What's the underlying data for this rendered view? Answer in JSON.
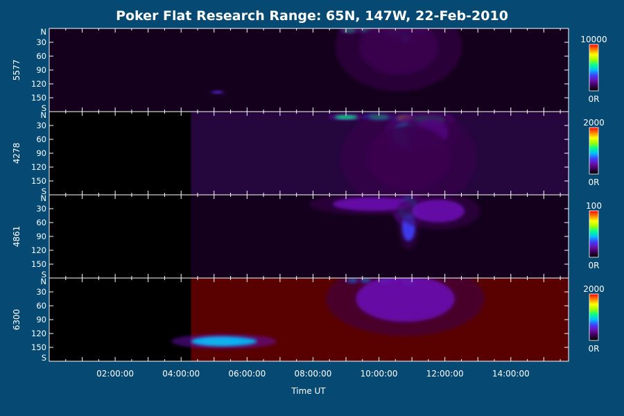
{
  "chart_data": {
    "type": "heatmap",
    "title": "Poker Flat Research Range: 65N, 147W, 22-Feb-2010",
    "xlabel": "Time UT",
    "x_range_hours": [
      0.0,
      15.75
    ],
    "x_ticks": [
      {
        "value": 2,
        "label": "02:00:00"
      },
      {
        "value": 4,
        "label": "04:00:00"
      },
      {
        "value": 6,
        "label": "06:00:00"
      },
      {
        "value": 8,
        "label": "08:00:00"
      },
      {
        "value": 10,
        "label": "10:00:00"
      },
      {
        "value": 12,
        "label": "12:00:00"
      },
      {
        "value": 14,
        "label": "14:00:00"
      }
    ],
    "y_range": [
      0,
      180
    ],
    "y_ticks": [
      {
        "value": 0,
        "label": "N"
      },
      {
        "value": 30,
        "label": "30"
      },
      {
        "value": 60,
        "label": "60"
      },
      {
        "value": 90,
        "label": "90"
      },
      {
        "value": 120,
        "label": "120"
      },
      {
        "value": 150,
        "label": "150"
      },
      {
        "value": 180,
        "label": "S"
      }
    ],
    "colormap": [
      "#000000",
      "#3a0050",
      "#6a10b0",
      "#4040ff",
      "#00c0ff",
      "#00ff90",
      "#a0ff00",
      "#ffff00",
      "#ff8000",
      "#ff0000"
    ],
    "panels": [
      {
        "name": "5577",
        "color_max_label": "10000",
        "color_min_label": "0R",
        "data_start_hours": 0.0,
        "background_level": 0.02,
        "features": [
          {
            "t": 9.1,
            "y": 5,
            "dt": 0.2,
            "dy": 4,
            "level": 0.55
          },
          {
            "t": 9.7,
            "y": 5,
            "dt": 0.25,
            "dy": 4,
            "level": 0.5
          },
          {
            "t": 10.5,
            "y": 8,
            "dt": 0.3,
            "dy": 10,
            "level": 0.6
          },
          {
            "t": 10.8,
            "y": 20,
            "dt": 0.15,
            "dy": 12,
            "level": 0.45
          },
          {
            "t": 11.2,
            "y": 6,
            "dt": 0.2,
            "dy": 4,
            "level": 0.45
          },
          {
            "t": 10.6,
            "y": 40,
            "dt": 1.2,
            "dy": 60,
            "level": 0.15
          },
          {
            "t": 5.1,
            "y": 138,
            "dt": 0.15,
            "dy": 2,
            "level": 0.35
          }
        ]
      },
      {
        "name": "4278",
        "color_max_label": "2000",
        "color_min_label": "0R",
        "data_start_hours": 4.3,
        "background_level": 0.03,
        "features": [
          {
            "t": 9.0,
            "y": 12,
            "dt": 0.35,
            "dy": 4,
            "level": 0.55
          },
          {
            "t": 10.0,
            "y": 12,
            "dt": 0.3,
            "dy": 5,
            "level": 0.6
          },
          {
            "t": 10.8,
            "y": 15,
            "dt": 0.25,
            "dy": 6,
            "level": 0.75
          },
          {
            "t": 11.5,
            "y": 18,
            "dt": 0.5,
            "dy": 10,
            "level": 0.5
          },
          {
            "t": 10.8,
            "y": 50,
            "dt": 0.4,
            "dy": 25,
            "level": 0.4
          },
          {
            "t": 11.6,
            "y": 45,
            "dt": 0.5,
            "dy": 30,
            "level": 0.25
          },
          {
            "t": 10.9,
            "y": 100,
            "dt": 1.3,
            "dy": 70,
            "level": 0.12
          }
        ]
      },
      {
        "name": "4861",
        "color_max_label": "100",
        "color_min_label": "0R",
        "data_start_hours": 4.3,
        "background_level": 0.02,
        "features": [
          {
            "t": 10.9,
            "y": 30,
            "dt": 0.3,
            "dy": 25,
            "level": 0.45
          },
          {
            "t": 10.9,
            "y": 70,
            "dt": 0.2,
            "dy": 30,
            "level": 0.3
          },
          {
            "t": 9.8,
            "y": 20,
            "dt": 1.2,
            "dy": 15,
            "level": 0.2
          },
          {
            "t": 11.8,
            "y": 35,
            "dt": 0.8,
            "dy": 25,
            "level": 0.18
          }
        ]
      },
      {
        "name": "6300",
        "color_max_label": "2000",
        "color_min_label": "0R",
        "data_start_hours": 4.3,
        "background_level": 0.18,
        "features": [
          {
            "t": 5.1,
            "y": 137,
            "dt": 0.45,
            "dy": 6,
            "level": 0.9
          },
          {
            "t": 5.3,
            "y": 137,
            "dt": 1.0,
            "dy": 10,
            "level": 0.45
          },
          {
            "t": 9.2,
            "y": 5,
            "dt": 0.15,
            "dy": 5,
            "level": 0.45
          },
          {
            "t": 9.6,
            "y": 5,
            "dt": 0.15,
            "dy": 5,
            "level": 0.45
          },
          {
            "t": 10.2,
            "y": 7,
            "dt": 0.2,
            "dy": 6,
            "level": 0.45
          },
          {
            "t": 10.9,
            "y": 8,
            "dt": 0.2,
            "dy": 8,
            "level": 0.5
          },
          {
            "t": 10.8,
            "y": 45,
            "dt": 1.5,
            "dy": 50,
            "level": 0.25
          }
        ]
      }
    ]
  }
}
